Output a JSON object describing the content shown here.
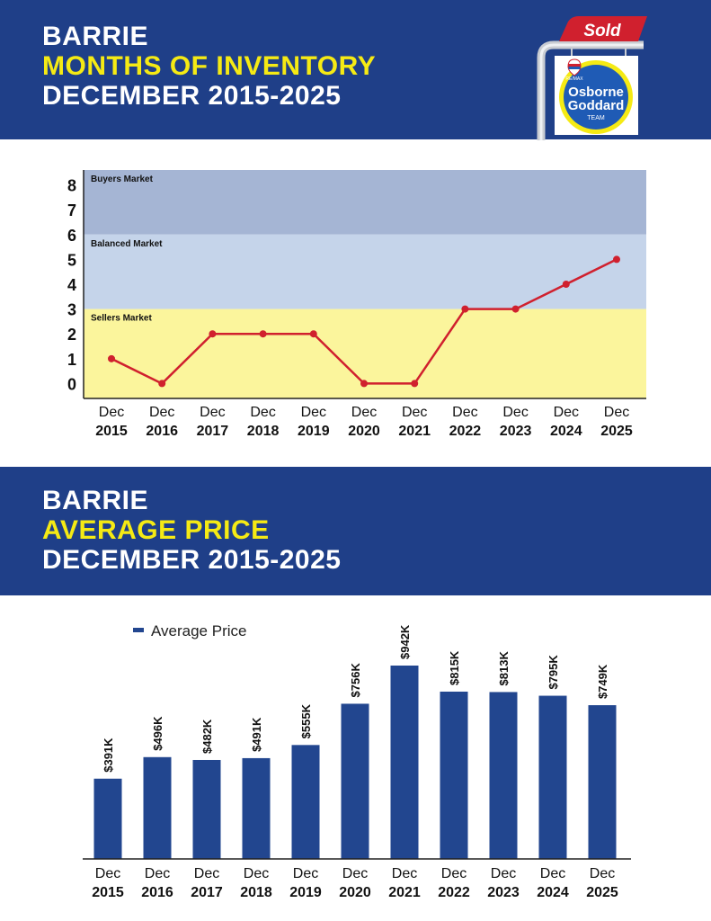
{
  "header": {
    "city": "BARRIE",
    "title": "MONTHS OF INVENTORY",
    "period": "DECEMBER 2015-2025"
  },
  "logo": {
    "sign_text": "Sold",
    "brand_small": "RE/MAX",
    "line1": "Osborne",
    "line2": "Goddard",
    "line3": "TEAM"
  },
  "section2": {
    "city": "BARRIE",
    "title": "AVERAGE PRICE",
    "period": "DECEMBER 2015-2025"
  },
  "colors": {
    "banner": "#1f3f88",
    "accent_yellow": "#f5ea14",
    "line": "#d0202e",
    "bar": "#22468f",
    "buyers_band": "#a5b5d4",
    "balanced_band": "#c5d4ea",
    "sellers_band": "#fbf59c"
  },
  "chart_data": [
    {
      "type": "line",
      "categories": [
        [
          "Dec",
          "2015"
        ],
        [
          "Dec",
          "2016"
        ],
        [
          "Dec",
          "2017"
        ],
        [
          "Dec",
          "2018"
        ],
        [
          "Dec",
          "2019"
        ],
        [
          "Dec",
          "2020"
        ],
        [
          "Dec",
          "2021"
        ],
        [
          "Dec",
          "2022"
        ],
        [
          "Dec",
          "2023"
        ],
        [
          "Dec",
          "2024"
        ],
        [
          "Dec",
          "2025"
        ]
      ],
      "values": [
        1,
        0,
        2,
        2,
        2,
        0,
        0,
        3,
        3,
        4,
        5
      ],
      "ylim": [
        -0.6,
        8.6
      ],
      "yticks": [
        0,
        1,
        2,
        3,
        4,
        5,
        6,
        7,
        8
      ],
      "bands": [
        {
          "label": "Buyers Market",
          "from": 6,
          "to": 8.6
        },
        {
          "label": "Balanced Market",
          "from": 3,
          "to": 6
        },
        {
          "label": "Sellers Market",
          "from": -0.6,
          "to": 3
        }
      ],
      "grid": false
    },
    {
      "type": "bar",
      "categories": [
        [
          "Dec",
          "2015"
        ],
        [
          "Dec",
          "2016"
        ],
        [
          "Dec",
          "2017"
        ],
        [
          "Dec",
          "2018"
        ],
        [
          "Dec",
          "2019"
        ],
        [
          "Dec",
          "2020"
        ],
        [
          "Dec",
          "2021"
        ],
        [
          "Dec",
          "2022"
        ],
        [
          "Dec",
          "2023"
        ],
        [
          "Dec",
          "2024"
        ],
        [
          "Dec",
          "2025"
        ]
      ],
      "series": [
        {
          "name": "Average Price",
          "values": [
            391,
            496,
            482,
            491,
            555,
            756,
            942,
            815,
            813,
            795,
            749
          ],
          "labels": [
            "$391K",
            "$496K",
            "$482K",
            "$491K",
            "$555K",
            "$756K",
            "$942K",
            "$815K",
            "$813K",
            "$795K",
            "$749K"
          ]
        }
      ],
      "ylim": [
        0,
        942
      ],
      "legend": "top-left",
      "grid": false
    }
  ]
}
